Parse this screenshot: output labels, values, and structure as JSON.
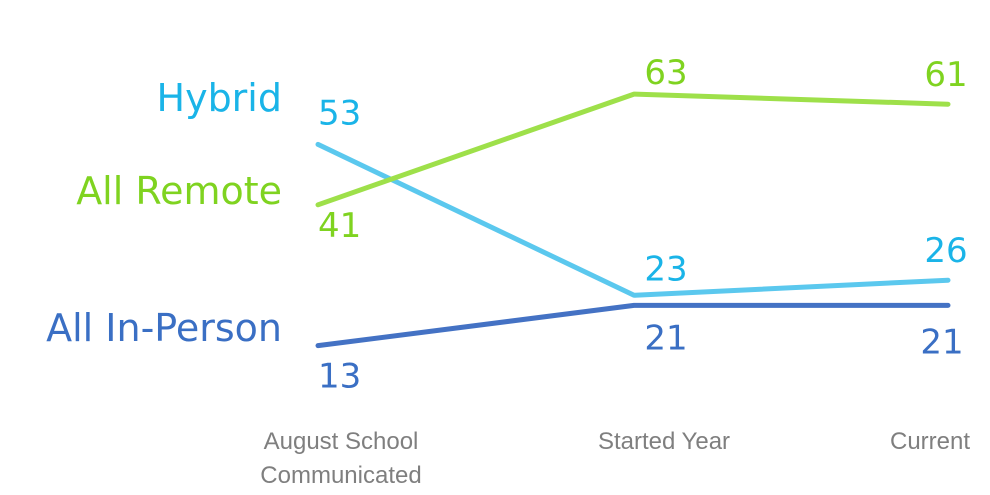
{
  "chart_data": {
    "type": "line",
    "title": "",
    "xlabel": "",
    "ylabel": "",
    "categories": [
      [
        "August School",
        "Communicated"
      ],
      [
        "Started Year"
      ],
      [
        "Current"
      ]
    ],
    "series": [
      {
        "name": "Hybrid",
        "values": [
          53,
          23,
          26
        ],
        "color": "#5bc8ee",
        "label_color": "#1ab4e8"
      },
      {
        "name": "All Remote",
        "values": [
          41,
          63,
          61
        ],
        "color": "#9ee04a",
        "label_color": "#7fd320"
      },
      {
        "name": "All In-Person",
        "values": [
          13,
          21,
          21
        ],
        "color": "#4472c4",
        "label_color": "#3a6fc4"
      }
    ],
    "ylim": [
      0,
      70
    ],
    "grid": false,
    "legend": "inline-left"
  }
}
